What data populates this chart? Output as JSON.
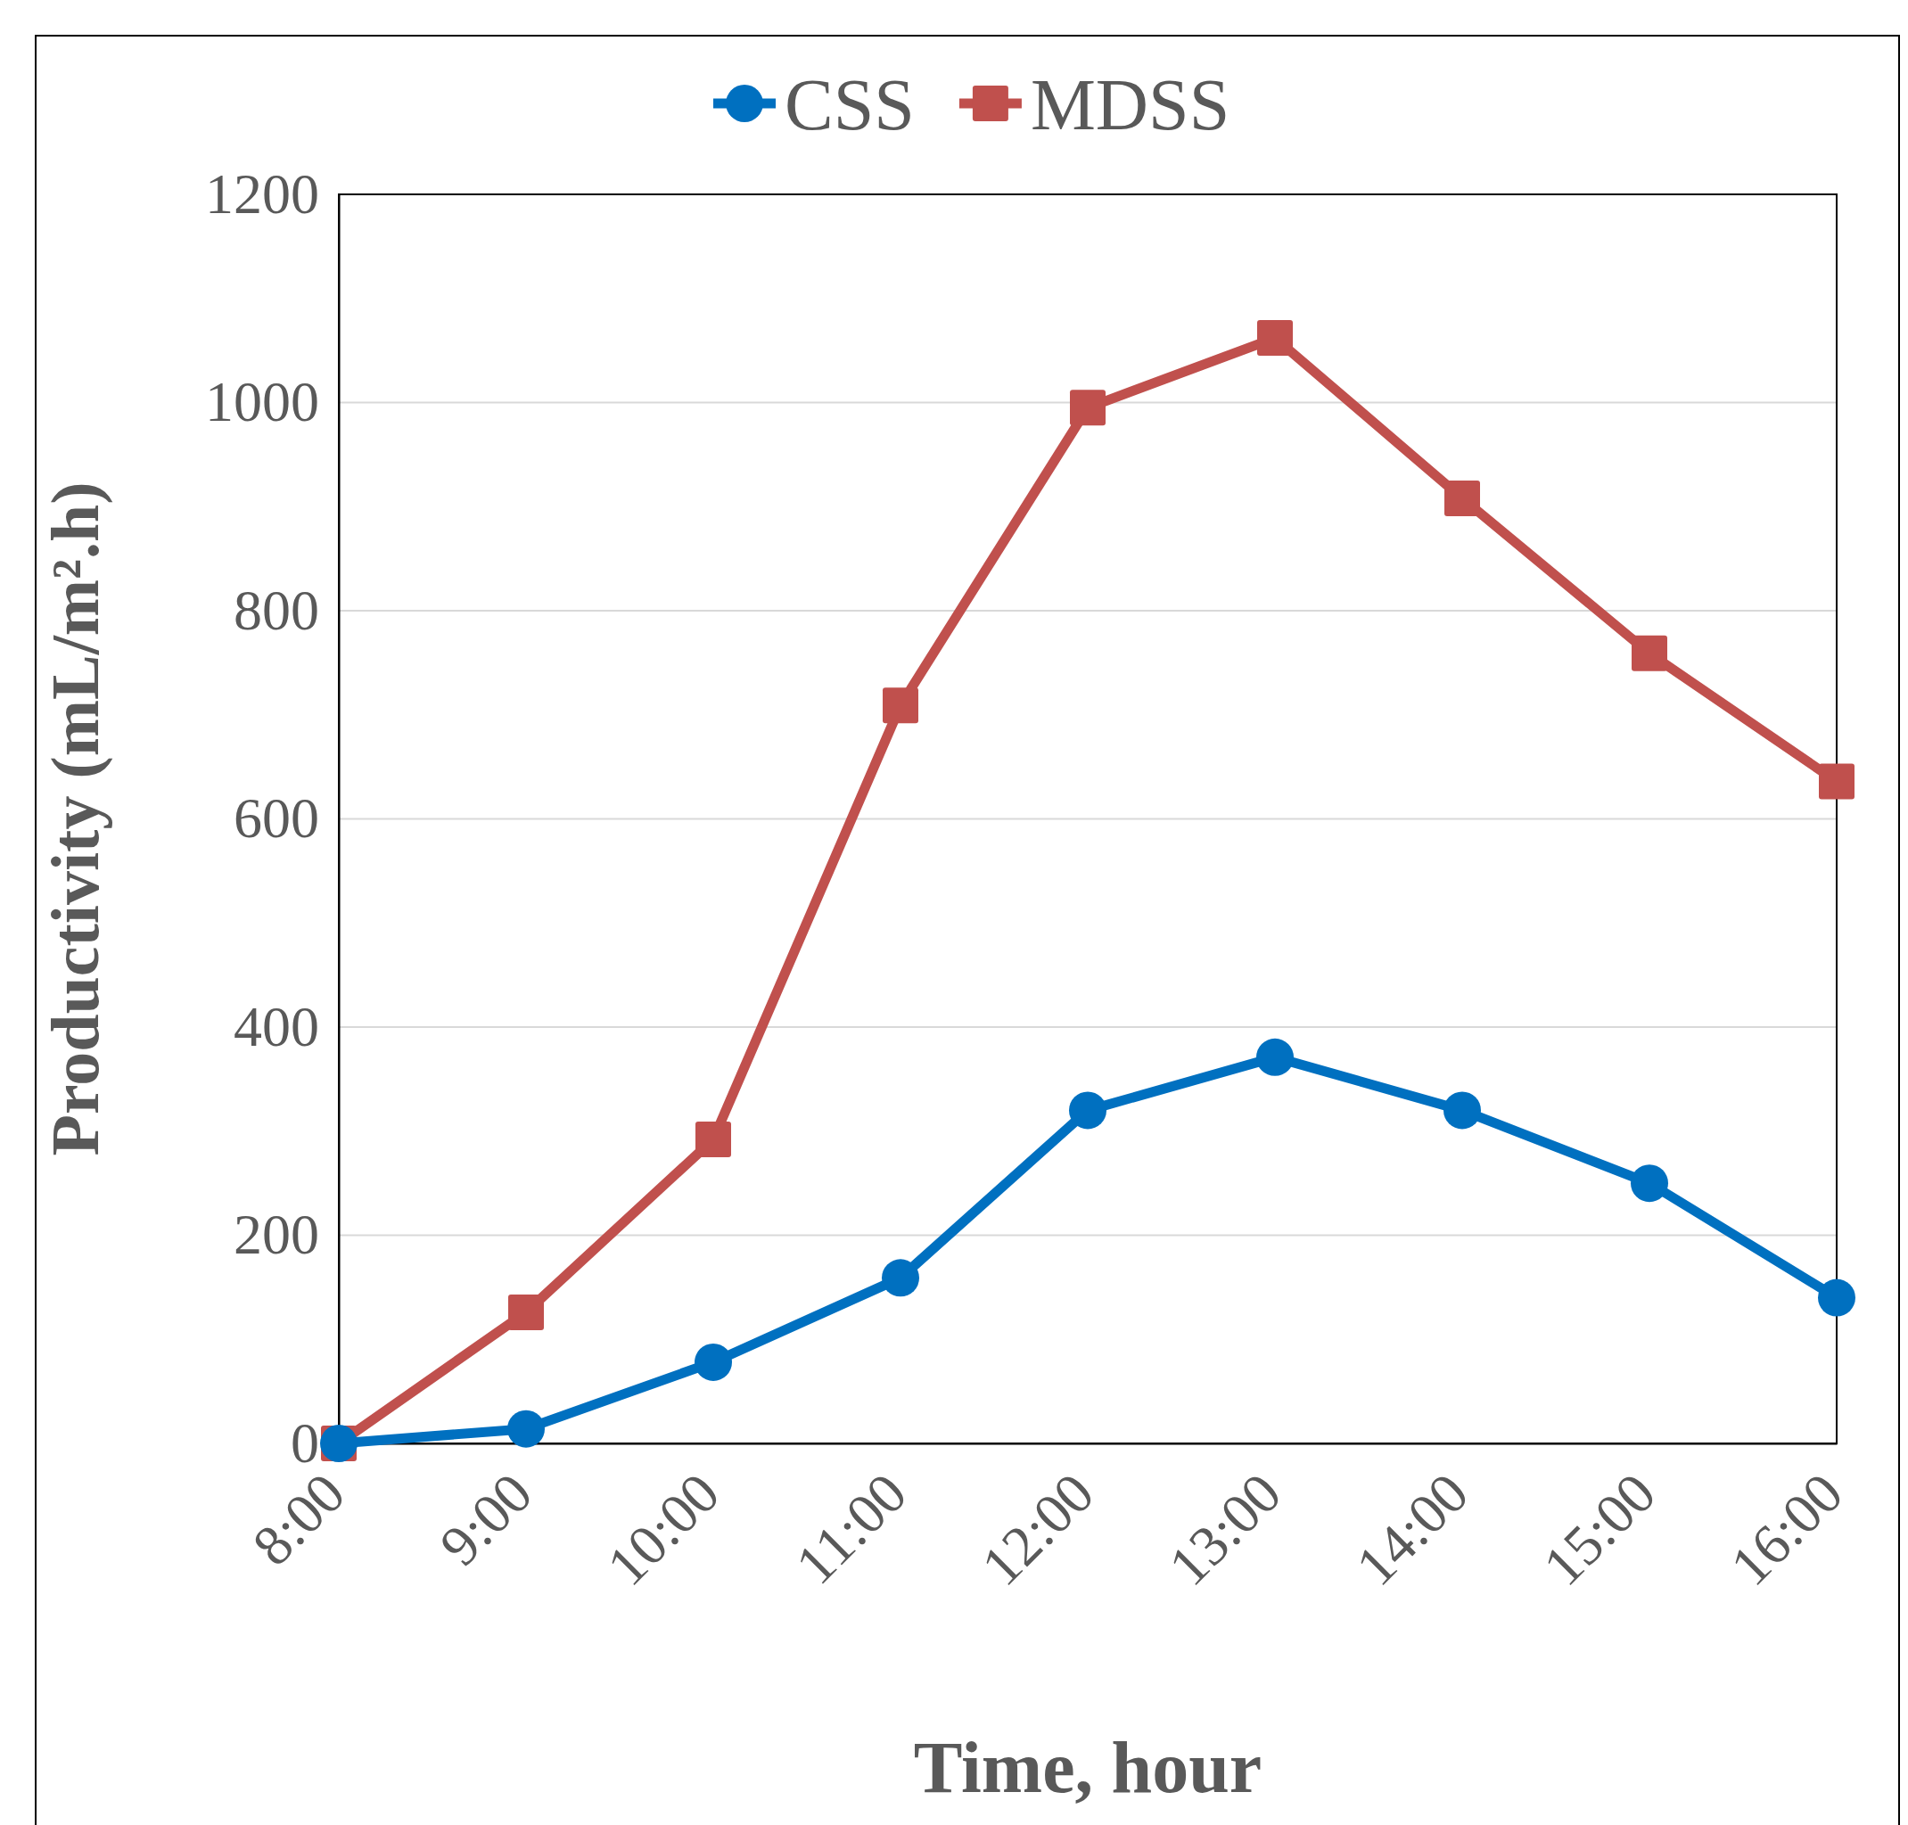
{
  "chart_data": {
    "type": "line",
    "xlabel": "Time, hour",
    "ylabel": "Productivity (mL/m².h)",
    "categories": [
      "8:00",
      "9:00",
      "10:00",
      "11:00",
      "12:00",
      "13:00",
      "14:00",
      "15:00",
      "16:00"
    ],
    "series": [
      {
        "name": "CSS",
        "color": "#0070c0",
        "marker": "circle",
        "values": [
          0,
          14,
          78,
          159,
          320,
          371,
          320,
          250,
          140
        ]
      },
      {
        "name": "MDSS",
        "color": "#c0504d",
        "marker": "square",
        "values": [
          0,
          126,
          292,
          709,
          995,
          1062,
          908,
          759,
          636
        ]
      }
    ],
    "ylim": [
      0,
      1200
    ],
    "yticks": [
      0,
      200,
      400,
      600,
      800,
      1000,
      1200
    ],
    "grid": "y",
    "legend": "top",
    "line_style": "solid"
  }
}
